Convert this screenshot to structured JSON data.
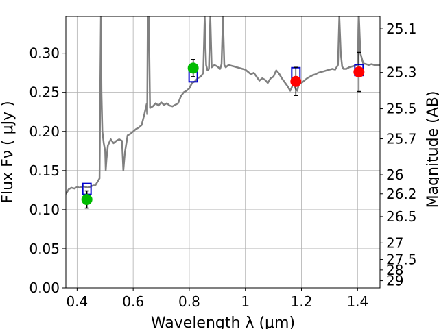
{
  "chart_data": {
    "type": "scatter",
    "xlabel": "Wavelength  λ (μm)",
    "ylabel": "Flux  Fν  ( μJy )",
    "ylabel_right": "Magnitude (AB)",
    "xlim": [
      0.36,
      1.48
    ],
    "ylim": [
      0.0,
      0.347
    ],
    "grid": true,
    "x_ticks": [
      {
        "value": 0.4,
        "label": "0.4"
      },
      {
        "value": 0.6,
        "label": "0.6"
      },
      {
        "value": 0.8,
        "label": "0.8"
      },
      {
        "value": 1.0,
        "label": "1"
      },
      {
        "value": 1.2,
        "label": "1.2"
      },
      {
        "value": 1.4,
        "label": "1.4"
      }
    ],
    "y_ticks": [
      {
        "value": 0.0,
        "label": "0.00"
      },
      {
        "value": 0.05,
        "label": "0.05"
      },
      {
        "value": 0.1,
        "label": "0.10"
      },
      {
        "value": 0.15,
        "label": "0.15"
      },
      {
        "value": 0.2,
        "label": "0.20"
      },
      {
        "value": 0.25,
        "label": "0.25"
      },
      {
        "value": 0.3,
        "label": "0.30"
      }
    ],
    "right_ticks": [
      {
        "value": 25.1,
        "label": "25.1"
      },
      {
        "value": 25.3,
        "label": "25.3"
      },
      {
        "value": 25.5,
        "label": "25.5"
      },
      {
        "value": 25.7,
        "label": "25.7"
      },
      {
        "value": 26.0,
        "label": "26"
      },
      {
        "value": 26.2,
        "label": "26.2"
      },
      {
        "value": 26.5,
        "label": "26.5"
      },
      {
        "value": 27.0,
        "label": "27"
      },
      {
        "value": 27.5,
        "label": "27.5"
      },
      {
        "value": 28.0,
        "label": "28"
      },
      {
        "value": 29.0,
        "label": "29"
      }
    ],
    "series": [
      {
        "kind": "model_spectrum",
        "color": "#808080",
        "points": [
          [
            0.36,
            0.12
          ],
          [
            0.37,
            0.126
          ],
          [
            0.38,
            0.128
          ],
          [
            0.39,
            0.127
          ],
          [
            0.4,
            0.129
          ],
          [
            0.41,
            0.128
          ],
          [
            0.42,
            0.13
          ],
          [
            0.43,
            0.129
          ],
          [
            0.44,
            0.128
          ],
          [
            0.45,
            0.13
          ],
          [
            0.46,
            0.131
          ],
          [
            0.465,
            0.131
          ],
          [
            0.47,
            0.134
          ],
          [
            0.475,
            0.137
          ],
          [
            0.48,
            0.14
          ],
          [
            0.483,
            0.27
          ],
          [
            0.485,
            0.347
          ],
          [
            0.487,
            0.25
          ],
          [
            0.49,
            0.2
          ],
          [
            0.495,
            0.185
          ],
          [
            0.5,
            0.175
          ],
          [
            0.502,
            0.15
          ],
          [
            0.505,
            0.165
          ],
          [
            0.51,
            0.182
          ],
          [
            0.52,
            0.19
          ],
          [
            0.53,
            0.185
          ],
          [
            0.54,
            0.188
          ],
          [
            0.55,
            0.19
          ],
          [
            0.56,
            0.188
          ],
          [
            0.565,
            0.15
          ],
          [
            0.57,
            0.172
          ],
          [
            0.58,
            0.195
          ],
          [
            0.59,
            0.197
          ],
          [
            0.6,
            0.2
          ],
          [
            0.61,
            0.203
          ],
          [
            0.62,
            0.205
          ],
          [
            0.63,
            0.208
          ],
          [
            0.64,
            0.222
          ],
          [
            0.645,
            0.23
          ],
          [
            0.648,
            0.235
          ],
          [
            0.65,
            0.222
          ],
          [
            0.652,
            0.347
          ],
          [
            0.656,
            0.347
          ],
          [
            0.66,
            0.23
          ],
          [
            0.67,
            0.232
          ],
          [
            0.68,
            0.236
          ],
          [
            0.69,
            0.233
          ],
          [
            0.7,
            0.237
          ],
          [
            0.71,
            0.234
          ],
          [
            0.72,
            0.236
          ],
          [
            0.73,
            0.233
          ],
          [
            0.74,
            0.232
          ],
          [
            0.75,
            0.234
          ],
          [
            0.76,
            0.236
          ],
          [
            0.77,
            0.245
          ],
          [
            0.78,
            0.25
          ],
          [
            0.79,
            0.252
          ],
          [
            0.8,
            0.255
          ],
          [
            0.81,
            0.262
          ],
          [
            0.82,
            0.264
          ],
          [
            0.83,
            0.268
          ],
          [
            0.84,
            0.27
          ],
          [
            0.845,
            0.272
          ],
          [
            0.85,
            0.275
          ],
          [
            0.855,
            0.347
          ],
          [
            0.86,
            0.285
          ],
          [
            0.865,
            0.278
          ],
          [
            0.87,
            0.28
          ],
          [
            0.875,
            0.347
          ],
          [
            0.88,
            0.282
          ],
          [
            0.89,
            0.285
          ],
          [
            0.9,
            0.283
          ],
          [
            0.91,
            0.28
          ],
          [
            0.915,
            0.286
          ],
          [
            0.92,
            0.347
          ],
          [
            0.925,
            0.285
          ],
          [
            0.93,
            0.282
          ],
          [
            0.94,
            0.285
          ],
          [
            0.95,
            0.284
          ],
          [
            0.96,
            0.283
          ],
          [
            0.97,
            0.282
          ],
          [
            0.98,
            0.281
          ],
          [
            0.99,
            0.28
          ],
          [
            1.0,
            0.279
          ],
          [
            1.01,
            0.276
          ],
          [
            1.02,
            0.273
          ],
          [
            1.03,
            0.275
          ],
          [
            1.04,
            0.27
          ],
          [
            1.05,
            0.265
          ],
          [
            1.06,
            0.268
          ],
          [
            1.07,
            0.266
          ],
          [
            1.08,
            0.262
          ],
          [
            1.09,
            0.268
          ],
          [
            1.1,
            0.27
          ],
          [
            1.11,
            0.278
          ],
          [
            1.12,
            0.274
          ],
          [
            1.13,
            0.268
          ],
          [
            1.14,
            0.263
          ],
          [
            1.15,
            0.258
          ],
          [
            1.16,
            0.252
          ],
          [
            1.17,
            0.26
          ],
          [
            1.175,
            0.258
          ],
          [
            1.18,
            0.254
          ],
          [
            1.185,
            0.252
          ],
          [
            1.19,
            0.26
          ],
          [
            1.2,
            0.262
          ],
          [
            1.21,
            0.265
          ],
          [
            1.22,
            0.268
          ],
          [
            1.23,
            0.27
          ],
          [
            1.24,
            0.272
          ],
          [
            1.25,
            0.273
          ],
          [
            1.26,
            0.275
          ],
          [
            1.27,
            0.276
          ],
          [
            1.28,
            0.277
          ],
          [
            1.29,
            0.278
          ],
          [
            1.3,
            0.279
          ],
          [
            1.31,
            0.28
          ],
          [
            1.32,
            0.279
          ],
          [
            1.33,
            0.285
          ],
          [
            1.335,
            0.347
          ],
          [
            1.34,
            0.3
          ],
          [
            1.345,
            0.283
          ],
          [
            1.35,
            0.28
          ],
          [
            1.36,
            0.28
          ],
          [
            1.37,
            0.282
          ],
          [
            1.38,
            0.283
          ],
          [
            1.39,
            0.284
          ],
          [
            1.4,
            0.285
          ],
          [
            1.405,
            0.347
          ],
          [
            1.41,
            0.3
          ],
          [
            1.42,
            0.287
          ],
          [
            1.43,
            0.286
          ],
          [
            1.44,
            0.285
          ],
          [
            1.45,
            0.286
          ],
          [
            1.46,
            0.285
          ],
          [
            1.47,
            0.285
          ],
          [
            1.48,
            0.285
          ]
        ]
      },
      {
        "kind": "model_band_fluxes",
        "marker": "open-square",
        "color": "#0000cc",
        "points": [
          {
            "x": 0.435,
            "y": 0.1265
          },
          {
            "x": 0.814,
            "y": 0.2705
          },
          {
            "x": 1.18,
            "y": 0.2745
          },
          {
            "x": 1.405,
            "y": 0.2785
          }
        ]
      },
      {
        "kind": "observed_photometry",
        "marker": "filled-circle",
        "points": [
          {
            "x": 0.435,
            "y": 0.113,
            "err": 0.011,
            "color": "#00bb00"
          },
          {
            "x": 0.814,
            "y": 0.281,
            "err": 0.011,
            "color": "#00bb00"
          },
          {
            "x": 1.18,
            "y": 0.264,
            "err": 0.018,
            "color": "#ff0000"
          },
          {
            "x": 1.405,
            "y": 0.276,
            "err": 0.025,
            "color": "#ff0000"
          }
        ]
      }
    ]
  }
}
